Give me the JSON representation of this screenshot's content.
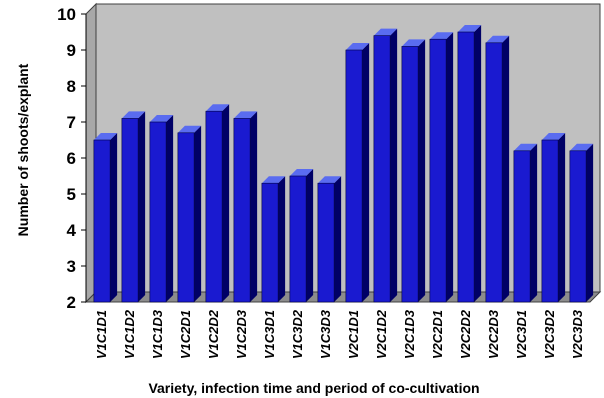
{
  "chart_data": {
    "type": "bar",
    "style": "3d-column",
    "categories": [
      "V1C1D1",
      "V1C1D2",
      "V1C1D3",
      "V1C2D1",
      "V1C2D2",
      "V1C2D3",
      "V1C3D1",
      "V1C3D2",
      "V1C3D3",
      "V2C1D1",
      "V2C1D2",
      "V2C1D3",
      "V2C2D1",
      "V2C2D2",
      "V2C2D3",
      "V2C3D1",
      "V2C3D2",
      "V2C3D3"
    ],
    "values": [
      6.5,
      7.1,
      7.0,
      6.7,
      7.3,
      7.1,
      5.3,
      5.5,
      5.3,
      9.0,
      9.4,
      9.1,
      9.3,
      9.5,
      9.2,
      6.2,
      6.5,
      6.2
    ],
    "yticks": [
      2,
      3,
      4,
      5,
      6,
      7,
      8,
      9,
      10
    ],
    "ylim": [
      2,
      10
    ],
    "xlabel": "Variety, infection time and period of co-cultivation",
    "ylabel": "Number of shoots/explant",
    "grid": false,
    "legend": "none",
    "colors": {
      "bar_front": "#1a1ad0",
      "bar_top": "#5a6cf0",
      "bar_side": "#000066",
      "back_wall": "#c0c0c0",
      "floor": "#8c8c8c"
    }
  }
}
